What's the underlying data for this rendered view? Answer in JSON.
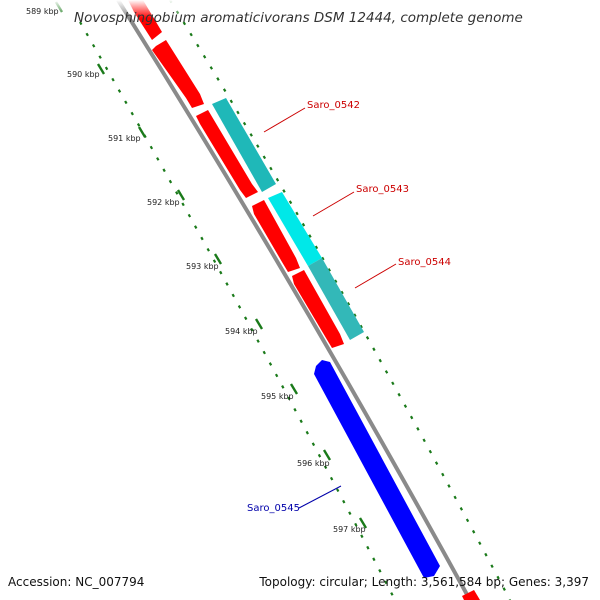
{
  "map": {
    "title": "Novosphingobium aromaticivorans DSM 12444, complete genome",
    "accession_label": "Accession: NC_007794",
    "summary_label": "Topology: circular; Length: 3,561,584 bp; Genes: 3,397"
  },
  "ticks": [
    {
      "label": "589 kbp"
    },
    {
      "label": "590 kbp"
    },
    {
      "label": "591 kbp"
    },
    {
      "label": "592 kbp"
    },
    {
      "label": "593 kbp"
    },
    {
      "label": "594 kbp"
    },
    {
      "label": "595 kbp"
    },
    {
      "label": "596 kbp"
    },
    {
      "label": "597 kbp"
    }
  ],
  "genes": [
    {
      "label": "Saro_0542",
      "strand": "forward",
      "color": "#ff0000"
    },
    {
      "label": "Saro_0542",
      "strand": "forward",
      "color": "#00b4b4"
    },
    {
      "label": "Saro_0543",
      "strand": "forward",
      "color": "#00e6e6"
    },
    {
      "label": "Saro_0544",
      "strand": "forward",
      "color": "#33b3b3"
    },
    {
      "label": "Saro_0545",
      "strand": "reverse",
      "color": "#0000ff"
    }
  ],
  "labels": {
    "saro_0542": "Saro_0542",
    "saro_0543": "Saro_0543",
    "saro_0544": "Saro_0544",
    "saro_0545": "Saro_0545"
  },
  "colors": {
    "forward_gene": "#ff0000",
    "reverse_gene": "#0000ff",
    "backbone": "#888888",
    "tick_dots": "#1a7a1a",
    "forward_label": "#cc0000",
    "reverse_label": "#0000aa"
  }
}
